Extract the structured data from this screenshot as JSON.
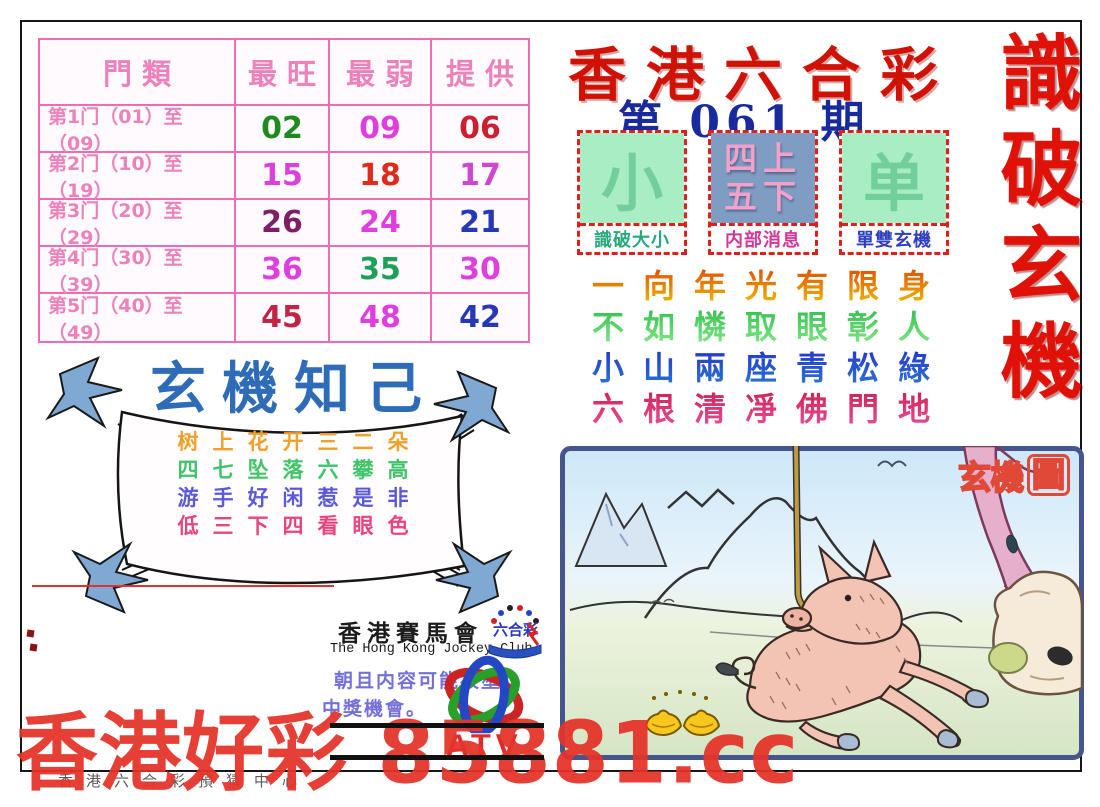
{
  "sheet": {
    "main_title": "香港六合彩",
    "issue": "第 061 期",
    "side_title": "識破玄機",
    "watermark": "香港好彩 85881.cc",
    "footer_center": "香港六合彩預猜中心",
    "accent_colors": {
      "title_red": "#cf1205",
      "issue_blue": "#182a9c",
      "frame_pink": "#ee6cb4",
      "watermark_red": "#e5342a"
    }
  },
  "table": {
    "headers": [
      "門類",
      "最旺",
      "最弱",
      "提供"
    ],
    "rows": [
      {
        "label": "第1门（01）至（09）",
        "cells": [
          {
            "value": "02",
            "color": "#1f8a1f"
          },
          {
            "value": "09",
            "color": "#e03fe0"
          },
          {
            "value": "06",
            "color": "#cc2030"
          }
        ]
      },
      {
        "label": "第2门（10）至（19）",
        "cells": [
          {
            "value": "15",
            "color": "#dd3fdd"
          },
          {
            "value": "18",
            "color": "#e02a1a"
          },
          {
            "value": "17",
            "color": "#cf46cf"
          }
        ]
      },
      {
        "label": "第3门（20）至（29）",
        "cells": [
          {
            "value": "26",
            "color": "#7c1f66"
          },
          {
            "value": "24",
            "color": "#e03fe0"
          },
          {
            "value": "21",
            "color": "#2438b8"
          }
        ]
      },
      {
        "label": "第4门（30）至（39）",
        "cells": [
          {
            "value": "36",
            "color": "#e03fe0"
          },
          {
            "value": "35",
            "color": "#1fa05a"
          },
          {
            "value": "30",
            "color": "#e03fe0"
          }
        ]
      },
      {
        "label": "第5门（40）至（49）",
        "cells": [
          {
            "value": "45",
            "color": "#c22446"
          },
          {
            "value": "48",
            "color": "#e03fe0"
          },
          {
            "value": "42",
            "color": "#2438b8"
          }
        ]
      }
    ]
  },
  "boxes": [
    {
      "main": "小",
      "caption": "識破大小",
      "bg": "#a9edc5",
      "main_color": "#72cf9c",
      "caption_color": "#2aa87c"
    },
    {
      "lines": [
        "四上",
        "五下"
      ],
      "caption": "内部消息",
      "bg": "#7f9cc2",
      "main_color": "#f2a2c8",
      "caption_color": "#d03898"
    },
    {
      "main": "单",
      "caption": "單雙玄機",
      "bg": "#a9edc5",
      "main_color": "#72cf9c",
      "caption_color": "#2f3fc0"
    }
  ],
  "verses": [
    {
      "text": "一向年光有限身",
      "color_top": "#e04a00",
      "color_bottom": "#f0c000"
    },
    {
      "text": "不如憐取眼彰人",
      "color_top": "#2fbf4f",
      "color_bottom": "#8ae88a"
    },
    {
      "text": "小山兩座青松綠",
      "color_top": "#2436c8",
      "color_bottom": "#2a7ad4"
    },
    {
      "text": "六根清凈佛門地",
      "color_top": "#d02050",
      "color_bottom": "#e8509e"
    }
  ],
  "banner": {
    "title": "玄機知己",
    "poem": [
      {
        "text": "树上花开三二朵",
        "color": "#f0a028"
      },
      {
        "text": "四七坠落六攀高",
        "color": "#3fc46a"
      },
      {
        "text": "游手好闲惹是非",
        "color": "#5a5ad8"
      },
      {
        "text": "低三下四看眼色",
        "color": "#e8447f"
      }
    ]
  },
  "jockey": {
    "cn": "香港賽馬會",
    "en": "The Hong Kong Jockey Club",
    "badge": "六合彩",
    "disclaimer1": "朝且内容可能被塗",
    "disclaimer2": "中獎機會。",
    "atv": "ATV"
  },
  "picture": {
    "label_main": "玄機",
    "label_boxed": "圖"
  }
}
